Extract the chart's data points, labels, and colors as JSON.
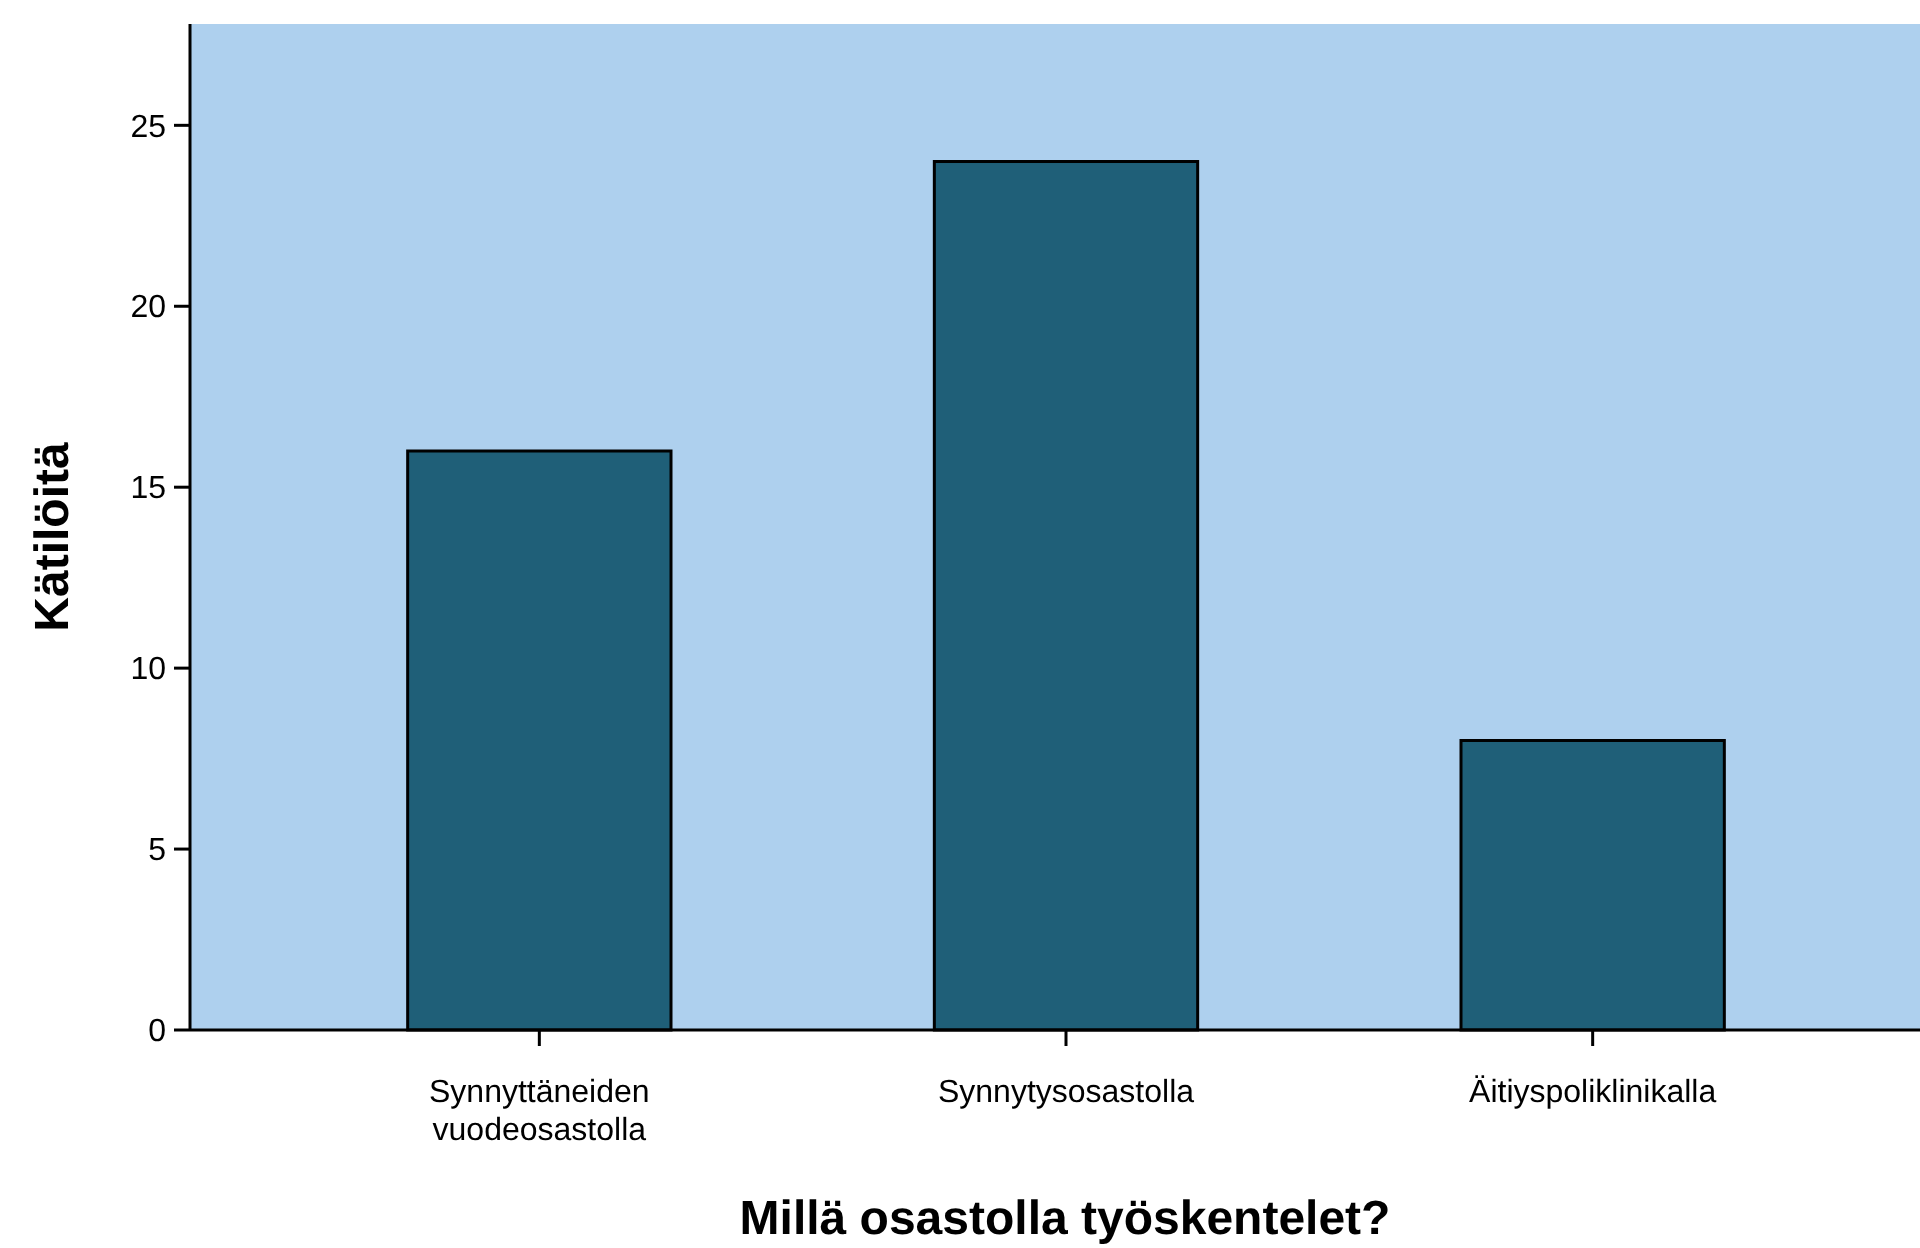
{
  "chart_data": {
    "type": "bar",
    "xlabel": "Millä osastolla työskentelet?",
    "ylabel": "Kätilöitä",
    "categories": [
      "Synnyttäneiden vuodeosastolla",
      "Synnytysosastolla",
      "Äitiyspoliklinikalla"
    ],
    "values": [
      16,
      24,
      8
    ],
    "color": "#1f5f78",
    "ylim": [
      0,
      27.8
    ],
    "yticks": [
      0,
      5,
      10,
      15,
      20,
      25
    ],
    "grid": false
  }
}
